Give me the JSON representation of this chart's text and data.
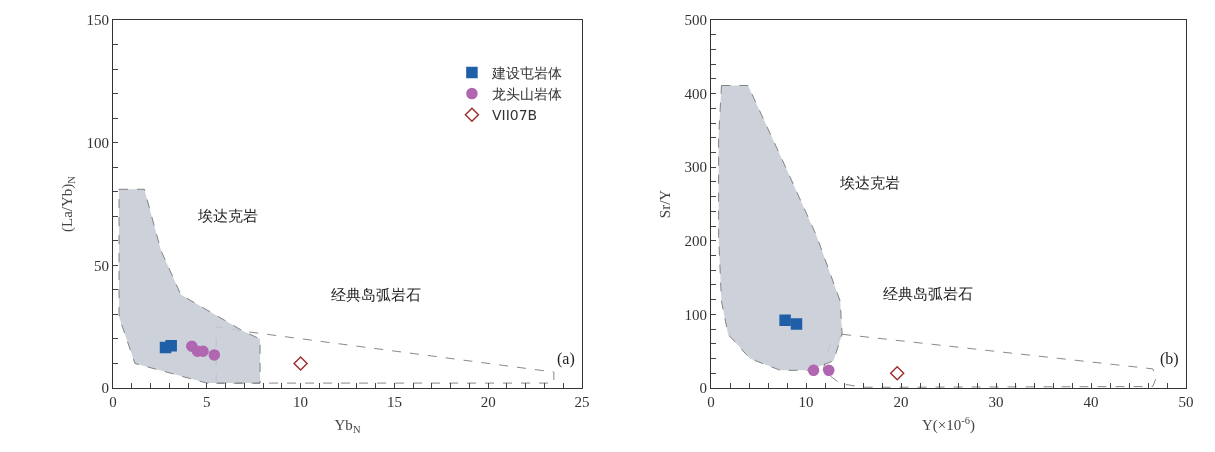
{
  "chart_data": [
    {
      "type": "scatter",
      "xlabel": "Yb$_{N}$",
      "ylabel": "(La/Yb)$_{N}$",
      "xlim": [
        0,
        25
      ],
      "ylim": [
        0,
        150
      ],
      "xticks": [
        0,
        {
          "value": 1,
          "label": null
        },
        {
          "value": 2,
          "label": null
        },
        {
          "value": 3,
          "label": null
        },
        {
          "value": 4,
          "label": null
        },
        5,
        {
          "value": 6,
          "label": null
        },
        {
          "value": 7,
          "label": null
        },
        {
          "value": 8,
          "label": null
        },
        {
          "value": 9,
          "label": null
        },
        10,
        {
          "value": 11,
          "label": null
        },
        {
          "value": 12,
          "label": null
        },
        {
          "value": 13,
          "label": null
        },
        {
          "value": 14,
          "label": null
        },
        15,
        {
          "value": 16,
          "label": null
        },
        {
          "value": 17,
          "label": null
        },
        {
          "value": 18,
          "label": null
        },
        {
          "value": 19,
          "label": null
        },
        20,
        {
          "value": 21,
          "label": null
        },
        {
          "value": 22,
          "label": null
        },
        {
          "value": 23,
          "label": null
        },
        {
          "value": 24,
          "label": null
        },
        25
      ],
      "yticks": [
        0,
        {
          "value": 10,
          "label": null
        },
        {
          "value": 20,
          "label": null
        },
        {
          "value": 30,
          "label": null
        },
        {
          "value": 40,
          "label": null
        },
        50,
        {
          "value": 60,
          "label": null
        },
        {
          "value": 70,
          "label": null
        },
        {
          "value": 80,
          "label": null
        },
        {
          "value": 90,
          "label": null
        },
        100,
        {
          "value": 110,
          "label": null
        },
        {
          "value": 120,
          "label": null
        },
        {
          "value": 130,
          "label": null
        },
        {
          "value": 140,
          "label": null
        },
        150
      ],
      "grid": false,
      "legend": "top right",
      "annotations": [
        "埃达克岩",
        "经典岛弧岩石",
        "(a)"
      ],
      "series": [
        {
          "type": "area",
          "color": "#ffffff",
          "line_style": "dashed",
          "marker": "none",
          "x": [
            5.5,
            5.5,
            7.1,
            23.5,
            23.5,
            5.5
          ],
          "values": [
            2,
            25,
            23,
            6.5,
            2,
            2
          ]
        },
        {
          "type": "area",
          "color": "#c5cbd6",
          "line_style": "dashed",
          "marker": "none",
          "x": [
            0.32,
            1.67,
            2.56,
            3.62,
            6.98,
            7.84,
            7.84,
            5.0,
            1.17,
            0.32,
            0.32
          ],
          "values": [
            81,
            81,
            56,
            38,
            23,
            20,
            2,
            2,
            10,
            29,
            81
          ]
        },
        {
          "name": "建设屯岩体",
          "color": "#1f5fa8",
          "marker": "square",
          "x": [
            2.8,
            3.1
          ],
          "values": [
            16.5,
            17.2
          ]
        },
        {
          "name": "龙头山岩体",
          "color": "#b066b0",
          "marker": "circle",
          "x": [
            4.2,
            4.5,
            4.8,
            5.4
          ],
          "values": [
            17,
            15,
            15,
            13.5
          ]
        },
        {
          "name": "VII07B",
          "color": "#a03030",
          "marker": "diamond",
          "x": [
            10
          ],
          "values": [
            10
          ]
        }
      ]
    },
    {
      "type": "scatter",
      "xlabel": "Y(×10$^{-6}$)",
      "ylabel": "Sr/Y",
      "xlim": [
        0,
        50
      ],
      "ylim": [
        0,
        500
      ],
      "xticks": [
        0,
        {
          "value": 2,
          "label": null
        },
        {
          "value": 4,
          "label": null
        },
        {
          "value": 6,
          "label": null
        },
        {
          "value": 8,
          "label": null
        },
        10,
        {
          "value": 12,
          "label": null
        },
        {
          "value": 14,
          "label": null
        },
        {
          "value": 16,
          "label": null
        },
        {
          "value": 18,
          "label": null
        },
        20,
        {
          "value": 22,
          "label": null
        },
        {
          "value": 24,
          "label": null
        },
        {
          "value": 26,
          "label": null
        },
        {
          "value": 28,
          "label": null
        },
        30,
        {
          "value": 32,
          "label": null
        },
        {
          "value": 34,
          "label": null
        },
        {
          "value": 36,
          "label": null
        },
        {
          "value": 38,
          "label": null
        },
        40,
        {
          "value": 42,
          "label": null
        },
        {
          "value": 44,
          "label": null
        },
        {
          "value": 46,
          "label": null
        },
        {
          "value": 48,
          "label": null
        },
        50
      ],
      "yticks": [
        0,
        {
          "value": 20,
          "label": null
        },
        {
          "value": 40,
          "label": null
        },
        {
          "value": 60,
          "label": null
        },
        {
          "value": 80,
          "label": null
        },
        100,
        {
          "value": 120,
          "label": null
        },
        {
          "value": 140,
          "label": null
        },
        {
          "value": 160,
          "label": null
        },
        {
          "value": 180,
          "label": null
        },
        200,
        {
          "value": 220,
          "label": null
        },
        {
          "value": 240,
          "label": null
        },
        {
          "value": 260,
          "label": null
        },
        {
          "value": 280,
          "label": null
        },
        300,
        {
          "value": 320,
          "label": null
        },
        {
          "value": 340,
          "label": null
        },
        {
          "value": 360,
          "label": null
        },
        {
          "value": 380,
          "label": null
        },
        400,
        {
          "value": 420,
          "label": null
        },
        {
          "value": 440,
          "label": null
        },
        {
          "value": 460,
          "label": null
        },
        {
          "value": 480,
          "label": null
        },
        500
      ],
      "grid": false,
      "legend": false,
      "annotations": [
        "埃达克岩",
        "经典岛弧岩石",
        "(b)"
      ],
      "series": [
        {
          "type": "area",
          "color": "#ffffff",
          "line_style": "dashed",
          "marker": "none",
          "x": [
            13.8,
            46.5,
            46.9,
            46.5,
            18.1,
            16,
            13.6,
            11.8,
            12.4,
            13.8
          ],
          "values": [
            73,
            26,
            15,
            2,
            1,
            1,
            6,
            24,
            55,
            73
          ]
        },
        {
          "type": "area",
          "color": "#c5cbd6",
          "line_style": "dashed",
          "marker": "none",
          "x": [
            1.1,
            3.9,
            8.0,
            11.1,
            13.6,
            13.8,
            12.9,
            10.4,
            7.3,
            4.1,
            1.8,
            1.1,
            0.8,
            0.8,
            1.1
          ],
          "values": [
            411,
            411,
            296,
            207,
            118,
            73,
            37,
            24,
            24,
            40,
            73,
            118,
            207,
            341,
            411
          ]
        },
        {
          "color": "#1f5fa8",
          "marker": "square",
          "x": [
            7.8,
            9.0
          ],
          "values": [
            92,
            87
          ]
        },
        {
          "color": "#b066b0",
          "marker": "circle",
          "x": [
            10.8,
            12.4
          ],
          "values": [
            24,
            24
          ]
        },
        {
          "color": "#a03030",
          "marker": "diamond",
          "x": [
            19.6
          ],
          "values": [
            20
          ]
        }
      ]
    }
  ]
}
